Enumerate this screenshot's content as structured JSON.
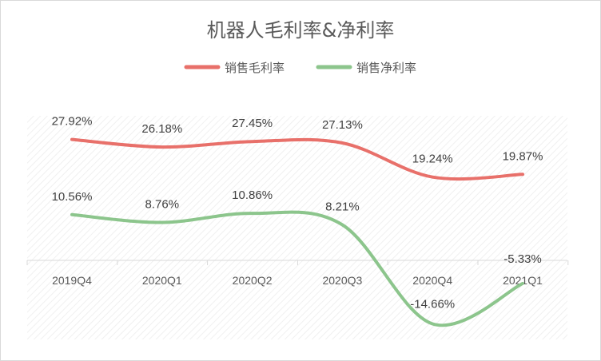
{
  "chart_data": {
    "type": "line",
    "title": "机器人毛利率&净利率",
    "categories": [
      "2019Q4",
      "2020Q1",
      "2020Q2",
      "2020Q3",
      "2020Q4",
      "2021Q1"
    ],
    "series": [
      {
        "name": "销售毛利率",
        "values": [
          27.92,
          26.18,
          27.45,
          27.13,
          19.24,
          19.87
        ],
        "labels": [
          "27.92%",
          "26.18%",
          "27.45%",
          "27.13%",
          "19.24%",
          "19.87%"
        ],
        "color": "#e8706a"
      },
      {
        "name": "销售净利率",
        "values": [
          10.56,
          8.76,
          10.86,
          8.21,
          -14.66,
          -5.33
        ],
        "labels": [
          "10.56%",
          "8.76%",
          "10.86%",
          "8.21%",
          "-14.66%",
          "-5.33%"
        ],
        "color": "#8cc58c"
      }
    ],
    "smooth": true,
    "legend_position": "top",
    "grid": false
  }
}
